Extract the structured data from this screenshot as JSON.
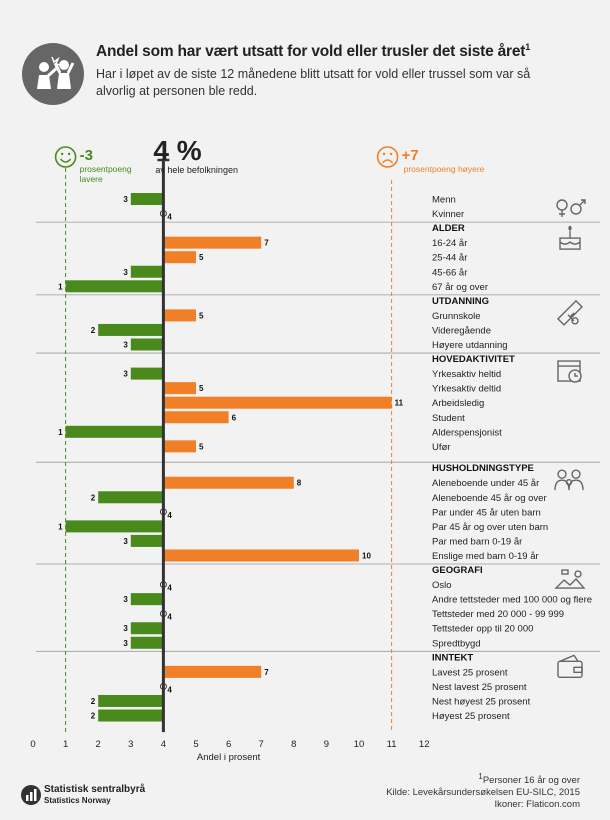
{
  "header": {
    "title": "Andel som har vært utsatt for vold eller trusler det siste året",
    "title_sup": "1",
    "subtitle": "Har i løpet av de siste 12 månedene blitt utsatt for vold eller trussel som var så alvorlig at personen ble redd."
  },
  "reference": {
    "avg_value": "4 %",
    "avg_label": "av hele befolkningen",
    "low_value": "-3",
    "low_label_1": "prosentpoeng",
    "low_label_2": "lavere",
    "high_value": "+7",
    "high_label": "prosentpoeng høyere"
  },
  "colors": {
    "green": "#4a8a1c",
    "orange": "#f07f27",
    "avg_line": "#333333",
    "grid": "#cccccc",
    "icon": "#666666"
  },
  "chart_data": {
    "type": "bar",
    "orientation": "horizontal",
    "xlabel": "Andel i prosent",
    "xlim": [
      0,
      12
    ],
    "xticks": [
      0,
      1,
      2,
      3,
      4,
      5,
      6,
      7,
      8,
      9,
      10,
      11,
      12
    ],
    "reference_lines": [
      1,
      4,
      11
    ],
    "average": 4,
    "groups": [
      {
        "name": "",
        "icon": "gender-icon",
        "items": [
          {
            "label": "Menn",
            "value": 3
          },
          {
            "label": "Kvinner",
            "value": 4
          }
        ]
      },
      {
        "name": "ALDER",
        "icon": "cake-icon",
        "items": [
          {
            "label": "16-24 år",
            "value": 7
          },
          {
            "label": "25-44 år",
            "value": 5
          },
          {
            "label": "45-66 år",
            "value": 3
          },
          {
            "label": "67 år og over",
            "value": 1
          }
        ]
      },
      {
        "name": "UTDANNING",
        "icon": "diploma-icon",
        "items": [
          {
            "label": "Grunnskole",
            "value": 5
          },
          {
            "label": "Videregående",
            "value": 2
          },
          {
            "label": "Høyere utdanning",
            "value": 3
          }
        ]
      },
      {
        "name": "HOVEDAKTIVITET",
        "icon": "calendar-clock-icon",
        "items": [
          {
            "label": "Yrkesaktiv heltid",
            "value": 3
          },
          {
            "label": "Yrkesaktiv deltid",
            "value": 5
          },
          {
            "label": "Arbeidsledig",
            "value": 11
          },
          {
            "label": "Student",
            "value": 6
          },
          {
            "label": "Alderspensjonist",
            "value": 1
          },
          {
            "label": "Ufør",
            "value": 5
          }
        ]
      },
      {
        "name": "HUSHOLDNINGSTYPE",
        "icon": "family-icon",
        "items": [
          {
            "label": "Aleneboende under 45 år",
            "value": 8
          },
          {
            "label": "Aleneboende 45 år og over",
            "value": 2
          },
          {
            "label": "Par under 45 år uten barn",
            "value": 4
          },
          {
            "label": "Par 45 år og over uten barn",
            "value": 1
          },
          {
            "label": "Par med barn 0-19 år",
            "value": 3
          },
          {
            "label": "Enslige med barn 0-19 år",
            "value": 10
          }
        ]
      },
      {
        "name": "GEOGRAFI",
        "icon": "landscape-icon",
        "items": [
          {
            "label": "Oslo",
            "value": 4
          },
          {
            "label": "Andre tettsteder med 100 000 og flere",
            "value": 3
          },
          {
            "label": "Tettsteder med 20 000 - 99 999",
            "value": 4
          },
          {
            "label": "Tettsteder opp til 20 000",
            "value": 3
          },
          {
            "label": "Spredtbygd",
            "value": 3
          }
        ]
      },
      {
        "name": "INNTEKT",
        "icon": "wallet-icon",
        "items": [
          {
            "label": "Lavest 25 prosent",
            "value": 7
          },
          {
            "label": "Nest lavest 25 prosent",
            "value": 4
          },
          {
            "label": "Nest høyest 25 prosent",
            "value": 2
          },
          {
            "label": "Høyest 25 prosent",
            "value": 2
          }
        ]
      }
    ]
  },
  "footer": {
    "note1": "Personer 16 år og over",
    "note1_sup": "1",
    "source": "Kilde: Levekårsundersøkelsen EU-SILC, 2015",
    "icons": "Ikoner: Flaticon.com",
    "org_name": "Statistisk sentralbyrå",
    "org_name_en": "Statistics Norway"
  }
}
